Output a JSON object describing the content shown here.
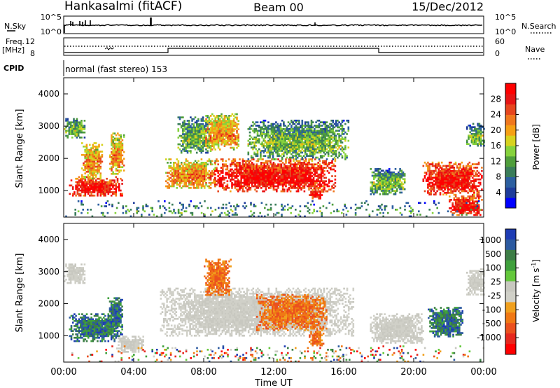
{
  "header": {
    "station": "Hankasalmi (fitACF)",
    "beam": "Beam 00",
    "date": "15/Dec/2012"
  },
  "params": {
    "nsky_label": "N.Sky",
    "nsky_ticks": [
      "10^5",
      "10^0"
    ],
    "nsearch_label": "N.Search",
    "freq_label": "Freq.",
    "freq_unit": "[MHz]",
    "freq_ticks": [
      "12",
      "8"
    ],
    "nave_ticks": [
      "60",
      "0"
    ],
    "nave_label": "Nave",
    "cpid_label": "CPID",
    "cpid_value": "normal (fast stereo) 153"
  },
  "chart_data": [
    {
      "type": "heatmap",
      "panel": "power",
      "ylabel": "Slant Range [km]",
      "xlabel": "",
      "xticks": [
        "00:00",
        "04:00",
        "08:00",
        "12:00",
        "16:00",
        "20:00",
        "00:00"
      ],
      "xlim_hours": [
        0,
        24
      ],
      "yticks": [
        1000,
        2000,
        3000,
        4000
      ],
      "ylim": [
        180,
        4500
      ],
      "colorbar": {
        "label": "Power [dB]",
        "ticks": [
          "4",
          "8",
          "12",
          "16",
          "20",
          "24",
          "28"
        ],
        "colors": [
          "#0000ff",
          "#1e3c9b",
          "#2c5fa0",
          "#3a7d5a",
          "#4f9e3b",
          "#86d23c",
          "#d7d21e",
          "#f5a014",
          "#f0781e",
          "#e6461e",
          "#e61414",
          "#ff0000"
        ]
      },
      "echo_regions": [
        {
          "t": [
            0.0,
            1.2
          ],
          "r": [
            2650,
            3250
          ],
          "level": "low"
        },
        {
          "t": [
            0.3,
            3.3
          ],
          "r": [
            850,
            1450
          ],
          "level": "high"
        },
        {
          "t": [
            1.0,
            2.2
          ],
          "r": [
            1400,
            2500
          ],
          "level": "mid"
        },
        {
          "t": [
            2.6,
            3.4
          ],
          "r": [
            1500,
            2800
          ],
          "level": "mid"
        },
        {
          "t": [
            5.8,
            8.7
          ],
          "r": [
            1100,
            2000
          ],
          "level": "mid"
        },
        {
          "t": [
            6.5,
            8.5
          ],
          "r": [
            2200,
            3300
          ],
          "level": "low"
        },
        {
          "t": [
            8.6,
            15.5
          ],
          "r": [
            1000,
            2000
          ],
          "level": "high"
        },
        {
          "t": [
            8.0,
            10.0
          ],
          "r": [
            2300,
            3400
          ],
          "level": "mid"
        },
        {
          "t": [
            10.5,
            16.3
          ],
          "r": [
            2000,
            3200
          ],
          "level": "low"
        },
        {
          "t": [
            14.0,
            14.8
          ],
          "r": [
            750,
            1100
          ],
          "level": "high"
        },
        {
          "t": [
            17.5,
            19.5
          ],
          "r": [
            900,
            1700
          ],
          "level": "low"
        },
        {
          "t": [
            20.5,
            23.9
          ],
          "r": [
            900,
            1900
          ],
          "level": "high"
        },
        {
          "t": [
            22.0,
            23.9
          ],
          "r": [
            250,
            900
          ],
          "level": "high"
        },
        {
          "t": [
            23.0,
            24.0
          ],
          "r": [
            2400,
            3100
          ],
          "level": "low"
        },
        {
          "t": [
            0.0,
            24.0
          ],
          "r": [
            180,
            700
          ],
          "level": "scatter"
        }
      ]
    },
    {
      "type": "heatmap",
      "panel": "velocity",
      "ylabel": "Slant Range [km]",
      "xlabel": "Time UT",
      "xticks": [
        "00:00",
        "04:00",
        "08:00",
        "12:00",
        "16:00",
        "20:00",
        "00:00"
      ],
      "xlim_hours": [
        0,
        24
      ],
      "yticks": [
        1000,
        2000,
        3000,
        4000
      ],
      "ylim": [
        180,
        4500
      ],
      "colorbar": {
        "label": "Velocity [m s",
        "label_sup": "-1",
        "label_end": "]",
        "ticks": [
          "1000",
          "500",
          "100",
          "25",
          "-25",
          "-100",
          "-500",
          "-1000"
        ],
        "colors": [
          "#1e3cb4",
          "#2c5aa0",
          "#3c7d46",
          "#3fa03c",
          "#64c83c",
          "#c8c8c0",
          "#d0d0c8",
          "#f0a01e",
          "#f07814",
          "#eb501e",
          "#e6281e",
          "#ff0000"
        ]
      },
      "echo_regions": [
        {
          "t": [
            0.0,
            1.2
          ],
          "r": [
            2650,
            3250
          ],
          "vel": "zero"
        },
        {
          "t": [
            0.3,
            3.3
          ],
          "r": [
            850,
            1700
          ],
          "vel": "pos"
        },
        {
          "t": [
            2.5,
            3.3
          ],
          "r": [
            1200,
            2200
          ],
          "vel": "pos"
        },
        {
          "t": [
            3.0,
            4.5
          ],
          "r": [
            500,
            1000
          ],
          "vel": "zero"
        },
        {
          "t": [
            5.5,
            16.5
          ],
          "r": [
            1000,
            2500
          ],
          "vel": "zero"
        },
        {
          "t": [
            11.0,
            15.0
          ],
          "r": [
            1200,
            2300
          ],
          "vel": "neg"
        },
        {
          "t": [
            14.0,
            14.8
          ],
          "r": [
            700,
            1200
          ],
          "vel": "neg"
        },
        {
          "t": [
            8.0,
            9.5
          ],
          "r": [
            2300,
            3400
          ],
          "vel": "neg"
        },
        {
          "t": [
            17.5,
            20.5
          ],
          "r": [
            800,
            1700
          ],
          "vel": "zero"
        },
        {
          "t": [
            20.8,
            22.8
          ],
          "r": [
            1000,
            1900
          ],
          "vel": "pos"
        },
        {
          "t": [
            23.0,
            24.0
          ],
          "r": [
            2300,
            3100
          ],
          "vel": "zero"
        },
        {
          "t": [
            0.0,
            24.0
          ],
          "r": [
            180,
            700
          ],
          "vel": "scatter"
        }
      ]
    }
  ]
}
